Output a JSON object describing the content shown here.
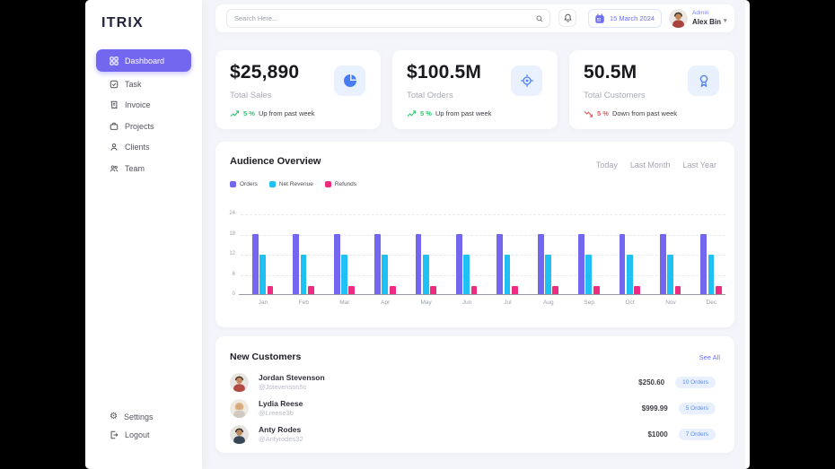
{
  "app": {
    "logo": "ITRIX"
  },
  "sidebar": {
    "items": [
      {
        "label": "Dashboard",
        "active": true
      },
      {
        "label": "Task",
        "active": false
      },
      {
        "label": "Invoice",
        "active": false
      },
      {
        "label": "Projects",
        "active": false
      },
      {
        "label": "Clients",
        "active": false
      },
      {
        "label": "Team",
        "active": false
      }
    ],
    "footer_items": [
      {
        "label": "Settings"
      },
      {
        "label": "Logout"
      }
    ]
  },
  "topbar": {
    "search_placeholder": "Search Here...",
    "date": "15 March 2024",
    "user": {
      "role": "Admin",
      "name": "Alex Bin"
    }
  },
  "stats": [
    {
      "value": "$25,890",
      "label": "Total Sales",
      "trend_pct": "5 %",
      "trend_text": "Up from past week",
      "direction": "up",
      "icon": "pie-chart-icon"
    },
    {
      "value": "$100.5M",
      "label": "Total Orders",
      "trend_pct": "5 %",
      "trend_text": "Up from past week",
      "direction": "up",
      "icon": "target-icon"
    },
    {
      "value": "50.5M",
      "label": "Total Customers",
      "trend_pct": "5 %",
      "trend_text": "Down from past week",
      "direction": "down",
      "icon": "award-icon"
    }
  ],
  "audience": {
    "title": "Audience Overview",
    "tabs": [
      "Today",
      "Last Month",
      "Last Year"
    ],
    "legend": [
      {
        "label": "Orders",
        "color": "#7367f0"
      },
      {
        "label": "Net Revenue",
        "color": "#1fc0f4"
      },
      {
        "label": "Refunds",
        "color": "#ed2b80"
      }
    ]
  },
  "chart_data": {
    "type": "bar",
    "title": "Audience Overview",
    "categories": [
      "Jan",
      "Feb",
      "Mar",
      "Apr",
      "May",
      "Jun",
      "Jul",
      "Aug",
      "Sep",
      "Oct",
      "Nov",
      "Dec"
    ],
    "series": [
      {
        "name": "Orders",
        "color": "#7367f0",
        "values": [
          18,
          18,
          18,
          18,
          18,
          18,
          18,
          18,
          18,
          18,
          18,
          18
        ]
      },
      {
        "name": "Net Revenue",
        "color": "#1fc0f4",
        "values": [
          12,
          12,
          12,
          12,
          12,
          12,
          12,
          12,
          12,
          12,
          12,
          12
        ]
      },
      {
        "name": "Refunds",
        "color": "#ed2b80",
        "values": [
          2.5,
          2.5,
          2.5,
          2.5,
          2.5,
          2.5,
          2.5,
          2.5,
          2.5,
          2.5,
          2.5,
          2.5
        ]
      }
    ],
    "xlabel": "",
    "ylabel": "",
    "ylim": [
      0,
      24
    ],
    "yticks": [
      0,
      6,
      12,
      18,
      24
    ],
    "grid": true,
    "legend_position": "top-left"
  },
  "customers": {
    "title": "New Customers",
    "see_all": "See All",
    "rows": [
      {
        "name": "Jordan Stevenson",
        "handle": "@Jstevenson5c",
        "amount": "$250.60",
        "orders": "10 Orders"
      },
      {
        "name": "Lydia Reese",
        "handle": "@Lreese3b",
        "amount": "$999.99",
        "orders": "5 Orders"
      },
      {
        "name": "Anty Rodes",
        "handle": "@Antyrodes32",
        "amount": "$1000",
        "orders": "7 Orders"
      }
    ]
  },
  "colors": {
    "accent": "#7367f0",
    "stat_icon_blue": "#4a7df5",
    "up_green": "#28c76f",
    "down_red": "#ea5455",
    "badge_text": "#5a8dee",
    "content_bg": "#f4f5fa"
  }
}
